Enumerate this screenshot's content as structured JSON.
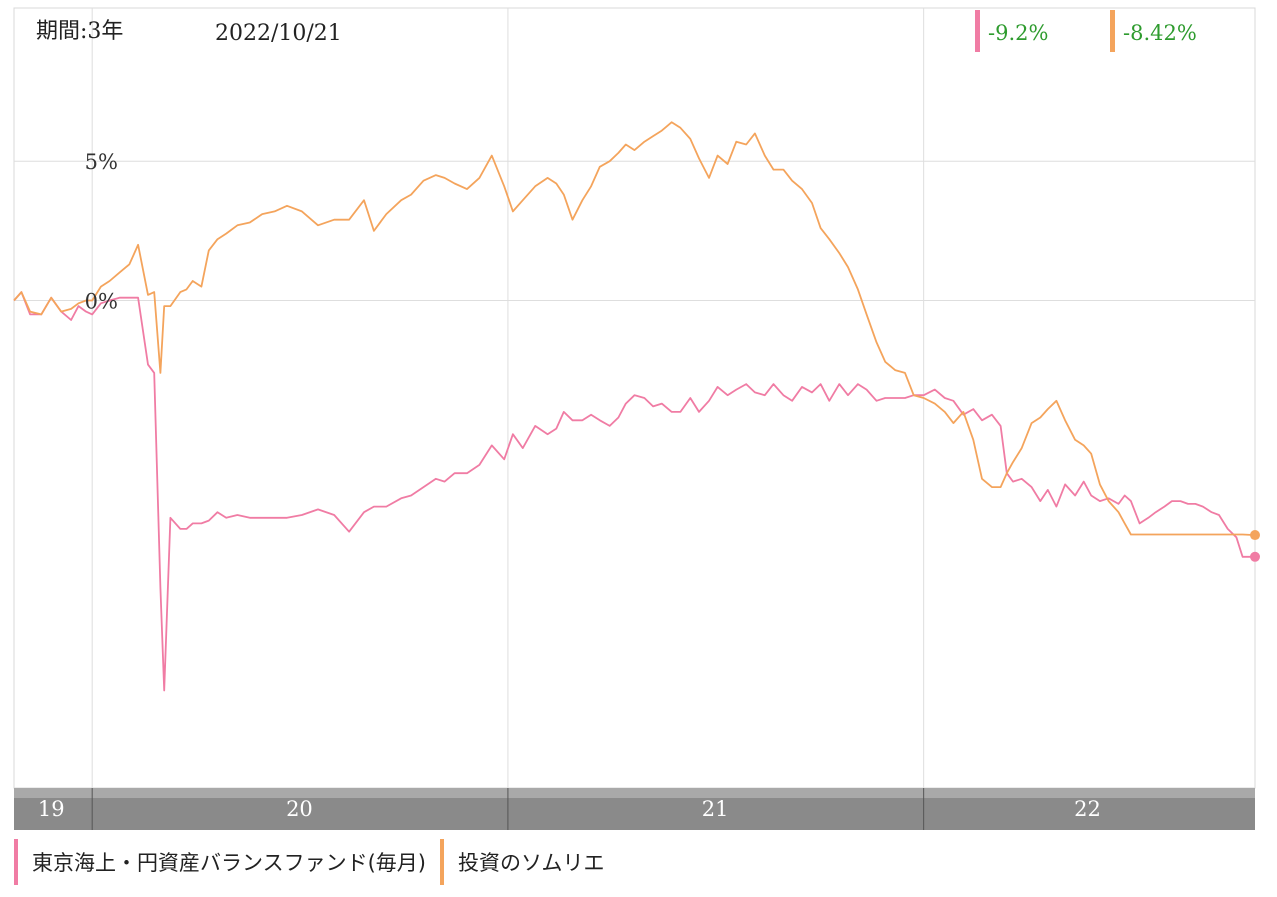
{
  "header": {
    "period_label": "期間:3年",
    "date": "2022/10/21"
  },
  "chart_data": {
    "type": "line",
    "ylim": [
      -17.5,
      10.5
    ],
    "y_ticks": [
      {
        "value": 5,
        "label": "5%"
      },
      {
        "value": 0,
        "label": "0%"
      }
    ],
    "x_ticks": [
      {
        "t": 0.063,
        "label": "19"
      },
      {
        "t": 0.398,
        "label": "20"
      },
      {
        "t": 0.733,
        "label": "21"
      },
      {
        "t": 1.0,
        "label": "22"
      }
    ],
    "x_label_positions": [
      0.03,
      0.23,
      0.565,
      0.865
    ],
    "series": [
      {
        "name": "東京海上・円資産バランスファンド(毎月)",
        "color": "#f07ca4",
        "final_value": "-9.2%",
        "x": [
          0.0,
          0.006,
          0.013,
          0.022,
          0.03,
          0.038,
          0.046,
          0.052,
          0.058,
          0.063,
          0.07,
          0.077,
          0.085,
          0.093,
          0.1,
          0.108,
          0.113,
          0.118,
          0.121,
          0.126,
          0.134,
          0.139,
          0.144,
          0.151,
          0.157,
          0.164,
          0.171,
          0.18,
          0.19,
          0.2,
          0.21,
          0.22,
          0.232,
          0.245,
          0.258,
          0.27,
          0.282,
          0.29,
          0.3,
          0.312,
          0.32,
          0.33,
          0.34,
          0.347,
          0.355,
          0.365,
          0.375,
          0.385,
          0.395,
          0.402,
          0.41,
          0.42,
          0.43,
          0.437,
          0.443,
          0.45,
          0.458,
          0.465,
          0.472,
          0.48,
          0.487,
          0.493,
          0.5,
          0.508,
          0.515,
          0.522,
          0.53,
          0.537,
          0.545,
          0.552,
          0.56,
          0.567,
          0.575,
          0.582,
          0.59,
          0.597,
          0.605,
          0.612,
          0.62,
          0.627,
          0.635,
          0.643,
          0.65,
          0.657,
          0.665,
          0.672,
          0.68,
          0.687,
          0.695,
          0.702,
          0.71,
          0.718,
          0.725,
          0.733,
          0.742,
          0.75,
          0.757,
          0.765,
          0.773,
          0.78,
          0.788,
          0.795,
          0.8,
          0.805,
          0.812,
          0.82,
          0.827,
          0.833,
          0.84,
          0.847,
          0.855,
          0.862,
          0.868,
          0.875,
          0.882,
          0.89,
          0.895,
          0.9,
          0.907,
          0.914,
          0.92,
          0.927,
          0.933,
          0.94,
          0.946,
          0.952,
          0.958,
          0.965,
          0.971,
          0.978,
          0.985,
          0.99,
          1.0
        ],
        "values": [
          0.0,
          0.3,
          -0.5,
          -0.5,
          0.1,
          -0.4,
          -0.7,
          -0.2,
          -0.4,
          -0.5,
          -0.1,
          0.0,
          0.1,
          0.1,
          0.1,
          -2.3,
          -2.6,
          -10.3,
          -14.0,
          -7.8,
          -8.2,
          -8.2,
          -8.0,
          -8.0,
          -7.9,
          -7.6,
          -7.8,
          -7.7,
          -7.8,
          -7.8,
          -7.8,
          -7.8,
          -7.7,
          -7.5,
          -7.7,
          -8.3,
          -7.6,
          -7.4,
          -7.4,
          -7.1,
          -7.0,
          -6.7,
          -6.4,
          -6.5,
          -6.2,
          -6.2,
          -5.9,
          -5.2,
          -5.7,
          -4.8,
          -5.3,
          -4.5,
          -4.8,
          -4.6,
          -4.0,
          -4.3,
          -4.3,
          -4.1,
          -4.3,
          -4.5,
          -4.2,
          -3.7,
          -3.4,
          -3.5,
          -3.8,
          -3.7,
          -4.0,
          -4.0,
          -3.5,
          -4.0,
          -3.6,
          -3.1,
          -3.4,
          -3.2,
          -3.0,
          -3.3,
          -3.4,
          -3.0,
          -3.4,
          -3.6,
          -3.1,
          -3.3,
          -3.0,
          -3.6,
          -3.0,
          -3.4,
          -3.0,
          -3.2,
          -3.6,
          -3.5,
          -3.5,
          -3.5,
          -3.4,
          -3.4,
          -3.2,
          -3.5,
          -3.6,
          -4.1,
          -3.9,
          -4.3,
          -4.1,
          -4.5,
          -6.2,
          -6.5,
          -6.4,
          -6.7,
          -7.2,
          -6.8,
          -7.4,
          -6.6,
          -7.0,
          -6.5,
          -7.0,
          -7.2,
          -7.1,
          -7.3,
          -7.0,
          -7.2,
          -8.0,
          -7.8,
          -7.6,
          -7.4,
          -7.2,
          -7.2,
          -7.3,
          -7.3,
          -7.4,
          -7.6,
          -7.7,
          -8.2,
          -8.5,
          -9.2,
          -9.2
        ]
      },
      {
        "name": "投資のソムリエ",
        "color": "#f4a45c",
        "final_value": "-8.42%",
        "x": [
          0.0,
          0.006,
          0.013,
          0.022,
          0.03,
          0.038,
          0.046,
          0.052,
          0.058,
          0.063,
          0.07,
          0.077,
          0.085,
          0.093,
          0.1,
          0.108,
          0.113,
          0.118,
          0.121,
          0.126,
          0.134,
          0.139,
          0.144,
          0.151,
          0.157,
          0.164,
          0.171,
          0.18,
          0.19,
          0.2,
          0.21,
          0.22,
          0.232,
          0.245,
          0.258,
          0.27,
          0.282,
          0.29,
          0.3,
          0.312,
          0.32,
          0.33,
          0.34,
          0.347,
          0.355,
          0.365,
          0.375,
          0.385,
          0.395,
          0.402,
          0.41,
          0.42,
          0.43,
          0.437,
          0.443,
          0.45,
          0.458,
          0.465,
          0.472,
          0.48,
          0.487,
          0.493,
          0.5,
          0.508,
          0.515,
          0.522,
          0.53,
          0.537,
          0.545,
          0.552,
          0.56,
          0.567,
          0.575,
          0.582,
          0.59,
          0.597,
          0.605,
          0.612,
          0.62,
          0.627,
          0.635,
          0.643,
          0.65,
          0.657,
          0.665,
          0.672,
          0.68,
          0.687,
          0.695,
          0.702,
          0.71,
          0.718,
          0.725,
          0.733,
          0.742,
          0.75,
          0.757,
          0.765,
          0.773,
          0.78,
          0.788,
          0.795,
          0.8,
          0.805,
          0.812,
          0.82,
          0.827,
          0.833,
          0.84,
          0.847,
          0.855,
          0.862,
          0.868,
          0.875,
          0.882,
          0.89,
          0.895,
          0.9,
          0.907,
          0.914,
          0.92,
          0.927,
          0.933,
          0.94,
          0.946,
          0.952,
          0.958,
          0.965,
          0.971,
          0.978,
          0.985,
          0.99,
          1.0
        ],
        "values": [
          0.0,
          0.3,
          -0.4,
          -0.5,
          0.1,
          -0.4,
          -0.3,
          -0.1,
          0.0,
          0.0,
          0.5,
          0.7,
          1.0,
          1.3,
          2.0,
          0.2,
          0.3,
          -2.6,
          -0.2,
          -0.2,
          0.3,
          0.4,
          0.7,
          0.5,
          1.8,
          2.2,
          2.4,
          2.7,
          2.8,
          3.1,
          3.2,
          3.4,
          3.2,
          2.7,
          2.9,
          2.9,
          3.6,
          2.5,
          3.1,
          3.6,
          3.8,
          4.3,
          4.5,
          4.4,
          4.2,
          4.0,
          4.4,
          5.2,
          4.1,
          3.2,
          3.6,
          4.1,
          4.4,
          4.2,
          3.8,
          2.9,
          3.6,
          4.1,
          4.8,
          5.0,
          5.3,
          5.6,
          5.4,
          5.7,
          5.9,
          6.1,
          6.4,
          6.2,
          5.8,
          5.1,
          4.4,
          5.2,
          4.9,
          5.7,
          5.6,
          6.0,
          5.2,
          4.7,
          4.7,
          4.3,
          4.0,
          3.5,
          2.6,
          2.2,
          1.7,
          1.2,
          0.4,
          -0.5,
          -1.5,
          -2.2,
          -2.5,
          -2.6,
          -3.4,
          -3.5,
          -3.7,
          -4.0,
          -4.4,
          -4.0,
          -5.0,
          -6.4,
          -6.7,
          -6.7,
          -6.2,
          -5.8,
          -5.3,
          -4.4,
          -4.2,
          -3.9,
          -3.6,
          -4.3,
          -5.0,
          -5.2,
          -5.5,
          -6.6,
          -7.2,
          -7.6,
          -8.0,
          -8.4,
          -8.4,
          -8.4,
          -8.4,
          -8.4,
          -8.4,
          -8.4,
          -8.4,
          -8.4,
          -8.4,
          -8.4,
          -8.4,
          -8.4,
          -8.4,
          -8.4,
          -8.42
        ]
      }
    ]
  }
}
